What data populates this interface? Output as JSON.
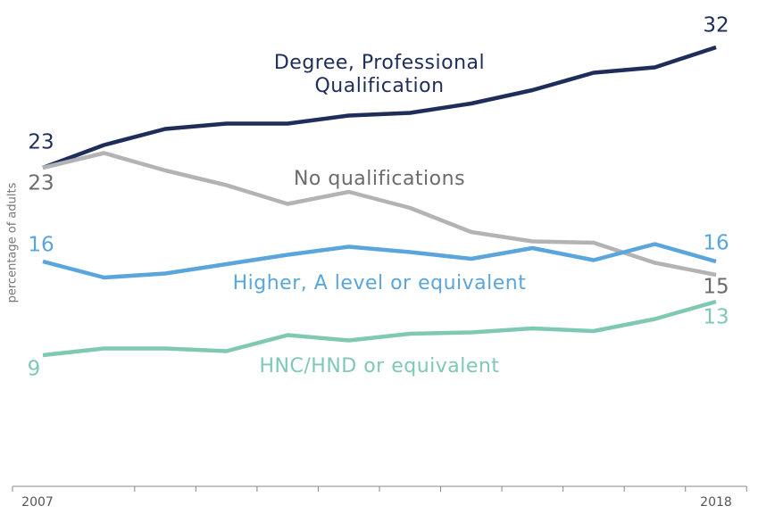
{
  "chart_data": {
    "type": "line",
    "y_label": "percentage of adults",
    "categories": [
      "2007",
      null,
      null,
      null,
      null,
      null,
      null,
      null,
      null,
      null,
      null,
      "2018"
    ],
    "ylim": [
      0,
      35
    ],
    "series": [
      {
        "name": "Degree, Professional Qualification",
        "color": "#1f2d5a",
        "label_color": "#1f2d5a",
        "values": [
          23,
          24.7,
          25.9,
          26.3,
          26.3,
          26.9,
          27.1,
          27.8,
          28.8,
          30.1,
          30.5,
          32
        ]
      },
      {
        "name": "No qualifications",
        "color": "#b3b3b3",
        "label_color": "#6b6b6b",
        "values": [
          23,
          24.1,
          22.8,
          21.7,
          20.3,
          21.2,
          20,
          18.2,
          17.5,
          17.4,
          15.9,
          15
        ]
      },
      {
        "name": "Higher, A level or equivalent",
        "color": "#5aa5dc",
        "label_color": "#5aa5dc",
        "values": [
          16,
          14.8,
          15.1,
          15.8,
          16.5,
          17.1,
          16.7,
          16.2,
          17,
          16.1,
          17.3,
          16
        ]
      },
      {
        "name": "HNC/HND or equivalent",
        "color": "#7fc9b3",
        "label_color": "#7fc9b3",
        "values": [
          9,
          9.5,
          9.5,
          9.3,
          10.5,
          10.1,
          10.6,
          10.7,
          11,
          10.8,
          11.7,
          13
        ]
      }
    ]
  }
}
